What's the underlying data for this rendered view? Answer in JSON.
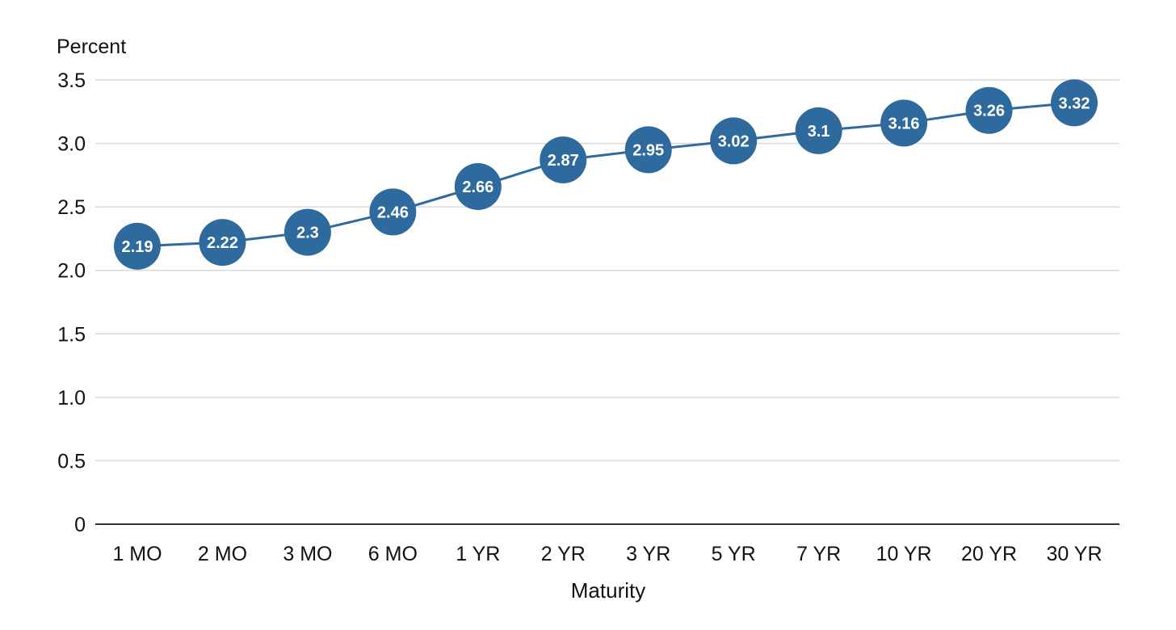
{
  "chart_data": {
    "type": "line",
    "title": "",
    "xlabel": "Maturity",
    "ylabel": "Percent",
    "categories": [
      "1 MO",
      "2 MO",
      "3 MO",
      "6 MO",
      "1 YR",
      "2 YR",
      "3 YR",
      "5 YR",
      "7 YR",
      "10 YR",
      "20 YR",
      "30 YR"
    ],
    "series": [
      {
        "values": [
          2.19,
          2.22,
          2.3,
          2.46,
          2.66,
          2.87,
          2.95,
          3.02,
          3.1,
          3.16,
          3.26,
          3.32
        ],
        "labels": [
          "2.19",
          "2.22",
          "2.3",
          "2.46",
          "2.66",
          "2.87",
          "2.95",
          "3.02",
          "3.1",
          "3.16",
          "3.26",
          "3.32"
        ]
      }
    ],
    "ylim": [
      0,
      3.5
    ],
    "yticks": [
      {
        "value": 0,
        "label": "0"
      },
      {
        "value": 0.5,
        "label": "0.5"
      },
      {
        "value": 1.0,
        "label": "1.0"
      },
      {
        "value": 1.5,
        "label": "1.5"
      },
      {
        "value": 2.0,
        "label": "2.0"
      },
      {
        "value": 2.5,
        "label": "2.5"
      },
      {
        "value": 3.0,
        "label": "3.0"
      },
      {
        "value": 3.5,
        "label": "3.5"
      }
    ],
    "grid": true,
    "legend": "none",
    "colors": {
      "series": "#2e6a9e",
      "grid": "#d9d9d9",
      "axis": "#333333",
      "label_text": "#ffffff"
    }
  }
}
